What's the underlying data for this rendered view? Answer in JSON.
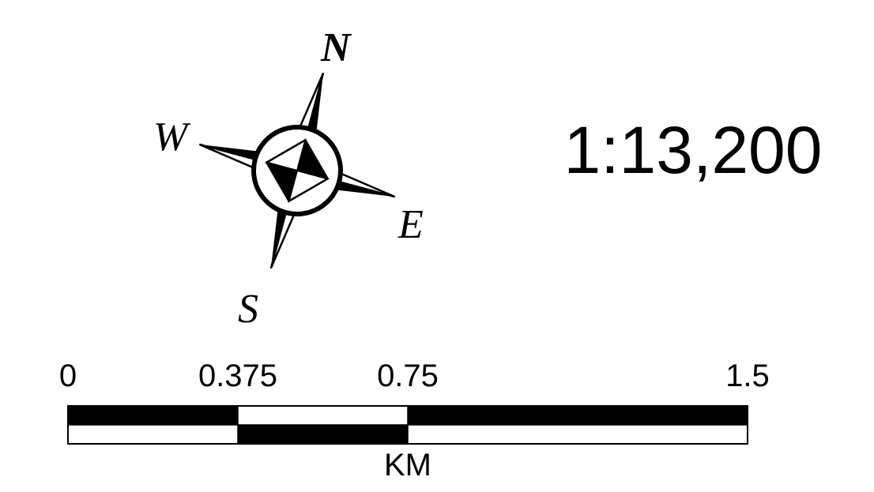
{
  "compass": {
    "north": "N",
    "south": "S",
    "east": "E",
    "west": "W"
  },
  "scale_ratio": "1:13,200",
  "scale_bar": {
    "unit": "KM",
    "max_distance": 1.5,
    "ticks": [
      {
        "value": 0,
        "label": "0"
      },
      {
        "value": 0.375,
        "label": "0.375"
      },
      {
        "value": 0.75,
        "label": "0.75"
      },
      {
        "value": 1.5,
        "label": "1.5"
      }
    ]
  },
  "colors": {
    "ink": "#000000",
    "paper": "#ffffff"
  }
}
